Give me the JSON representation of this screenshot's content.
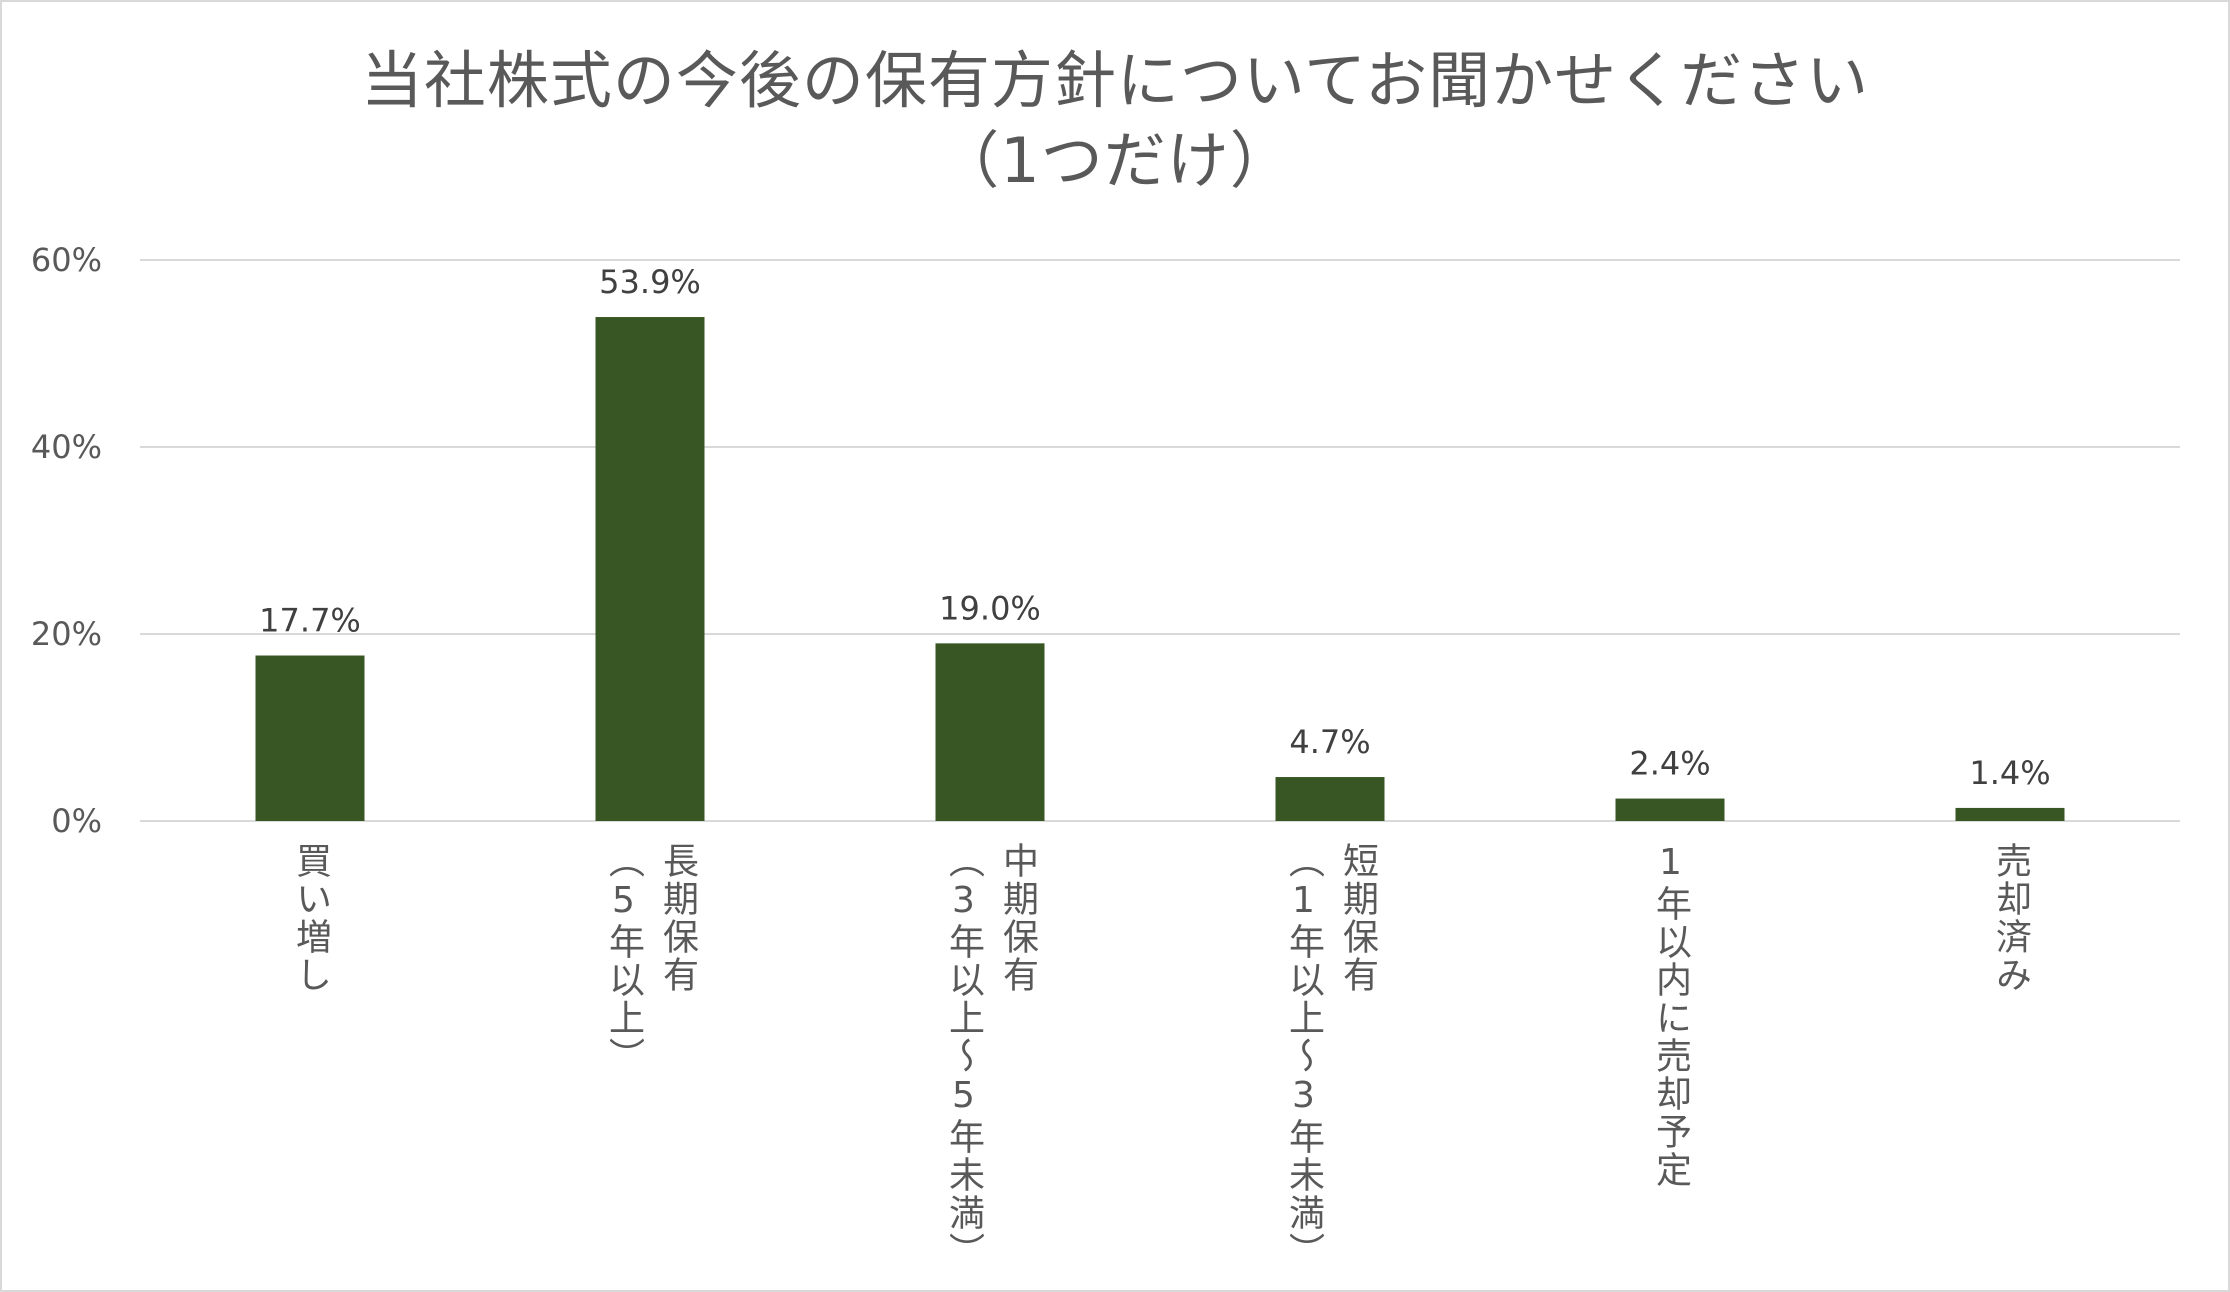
{
  "chart_data": {
    "type": "bar",
    "title": "当社株式の今後の保有方針についてお聞かせください",
    "subtitle": "（1つだけ）",
    "categories": [
      [
        "買い増し"
      ],
      [
        "長期保有",
        "（5年以上）"
      ],
      [
        "中期保有",
        "（3年以上～5年未満）"
      ],
      [
        "短期保有",
        "（1年以上～3年未満）"
      ],
      [
        "1年以内に売却予定"
      ],
      [
        "売却済み"
      ]
    ],
    "values": [
      17.7,
      53.9,
      19.0,
      4.7,
      2.4,
      1.4
    ],
    "value_labels": [
      "17.7%",
      "53.9%",
      "19.0%",
      "4.7%",
      "2.4%",
      "1.4%"
    ],
    "ylim": [
      0,
      60
    ],
    "yticks": [
      0,
      20,
      40,
      60
    ],
    "ytick_labels": [
      "0%",
      "20%",
      "40%",
      "60%"
    ],
    "grid": true,
    "legend": "none",
    "colors": {
      "bar": "#375623",
      "grid": "#d9d9d9",
      "text": "#595959"
    }
  }
}
